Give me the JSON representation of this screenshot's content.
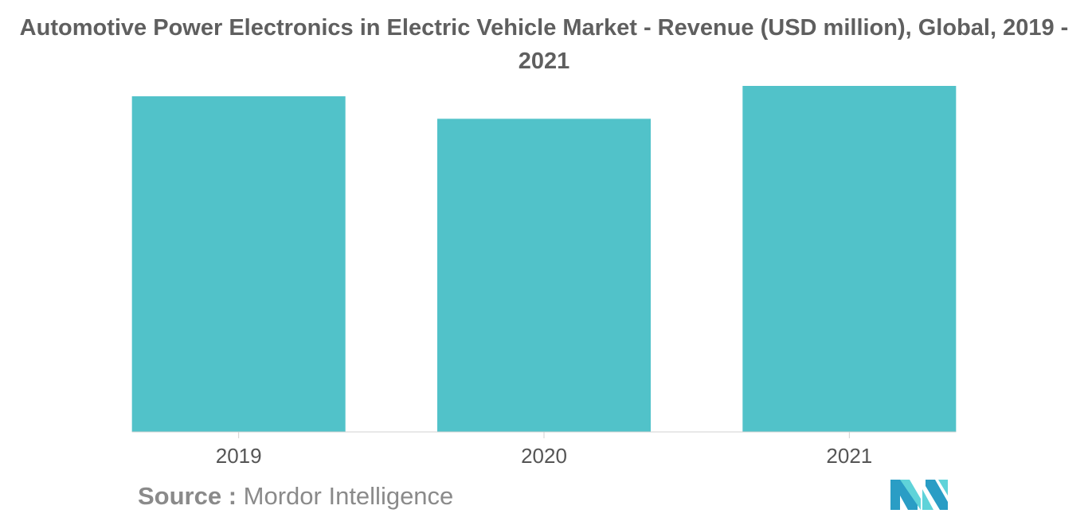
{
  "chart_data": {
    "type": "bar",
    "title": "Automotive Power Electronics in Electric Vehicle Market - Revenue (USD million), Global, 2019 - 2021",
    "categories": [
      "2019",
      "2020",
      "2021"
    ],
    "values": [
      97,
      90.5,
      100
    ],
    "ylim": [
      0,
      100
    ],
    "xlabel": "",
    "ylabel": "",
    "grid": false,
    "bar_color": "#51c2c9",
    "axis_color": "#d0d0d0"
  },
  "source": {
    "label": "Source :",
    "text": "Mordor Intelligence"
  },
  "brand": {
    "logo_icon": "mordor-intelligence-logo",
    "colors": [
      "#2a9dc5",
      "#5fd3d9"
    ]
  }
}
